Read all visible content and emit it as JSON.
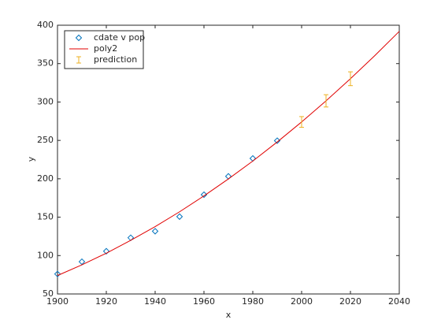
{
  "chart_data": {
    "type": "scatter",
    "xlabel": "x",
    "ylabel": "y",
    "xlim": [
      1900,
      2040
    ],
    "xticks": [
      1900,
      1920,
      1940,
      1960,
      1980,
      2000,
      2020,
      2040
    ],
    "ylim": [
      50,
      400
    ],
    "yticks": [
      50,
      100,
      150,
      200,
      250,
      300,
      350,
      400
    ],
    "legend": "upper left",
    "series": [
      {
        "name": "cdate v pop",
        "type": "scatter",
        "color": "#0072bd",
        "x": [
          1900,
          1910,
          1920,
          1930,
          1940,
          1950,
          1960,
          1970,
          1980,
          1990
        ],
        "values": [
          76.0,
          92.0,
          105.7,
          123.2,
          131.7,
          150.7,
          179.3,
          203.2,
          226.5,
          249.6
        ]
      },
      {
        "name": "poly2",
        "type": "line",
        "color": "#e00000",
        "x": [
          1900,
          1910,
          1920,
          1930,
          1940,
          1950,
          1960,
          1970,
          1980,
          1990,
          2000,
          2010,
          2020,
          2030,
          2040
        ],
        "values": [
          74,
          87.9,
          103.1,
          119.8,
          137.7,
          157.0,
          177.7,
          199.8,
          223.1,
          247.9,
          274,
          301.5,
          330.3,
          360.5,
          392
        ]
      },
      {
        "name": "prediction",
        "type": "errorbar",
        "color": "#edb120",
        "x": [
          2000,
          2010,
          2020
        ],
        "values": [
          274,
          301.5,
          330.3
        ],
        "errors": [
          7,
          8,
          9
        ]
      }
    ]
  }
}
